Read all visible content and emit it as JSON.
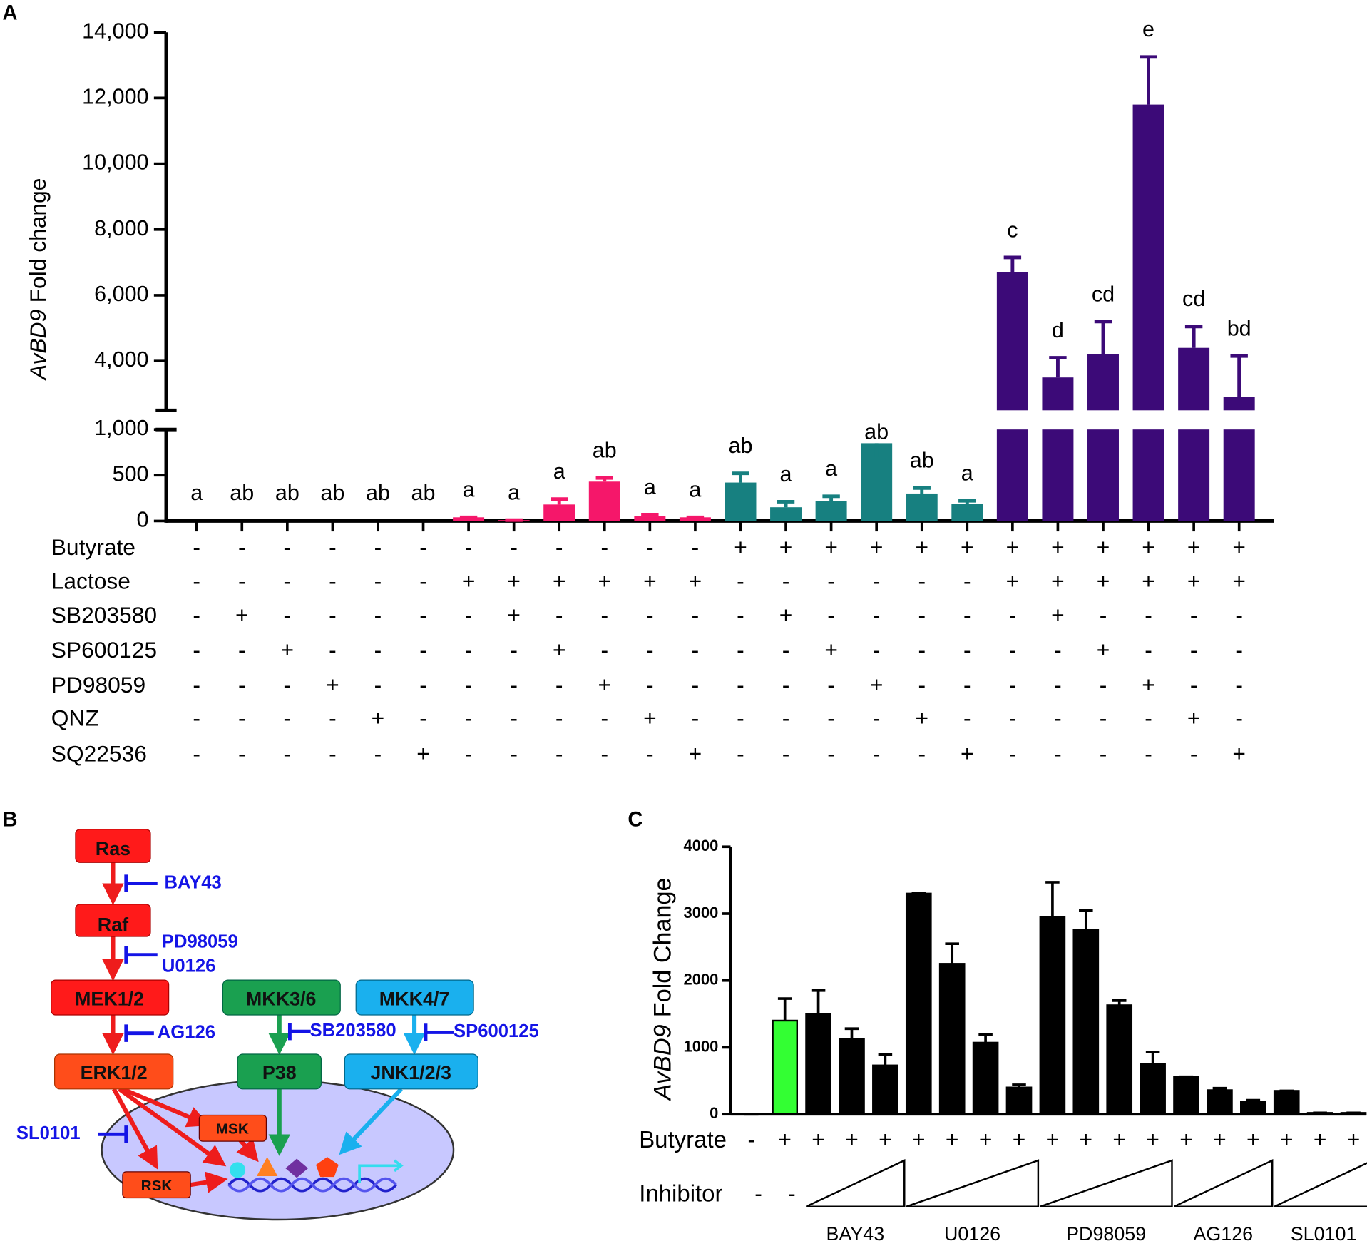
{
  "chart_data": [
    {
      "type": "bar",
      "panel": "A",
      "ylabel": {
        "italic": "AvBD9",
        "rest": "Fold change"
      },
      "ylim": [
        0,
        14000
      ],
      "ybreak": [
        1000,
        2500
      ],
      "yticks": [
        0,
        500,
        {
          "value": 1000,
          "label": "1,000"
        },
        {
          "value": 4000,
          "label": "4,000"
        },
        {
          "value": 6000,
          "label": "6,000"
        },
        {
          "value": 8000,
          "label": "8,000"
        },
        {
          "value": 10000,
          "label": "10,000"
        },
        {
          "value": 12000,
          "label": "12,000"
        },
        {
          "value": 14000,
          "label": "14,000"
        }
      ],
      "values": [
        5,
        5,
        5,
        5,
        5,
        5,
        40,
        10,
        180,
        430,
        50,
        40,
        420,
        150,
        220,
        850,
        300,
        190,
        6700,
        3500,
        4200,
        11800,
        4400,
        2900
      ],
      "errors": [
        0,
        0,
        0,
        0,
        0,
        0,
        0,
        0,
        60,
        40,
        20,
        0,
        100,
        60,
        50,
        160,
        60,
        30,
        450,
        600,
        1000,
        1450,
        650,
        1250
      ],
      "annotations": [
        "a",
        "ab",
        "ab",
        "ab",
        "ab",
        "ab",
        "a",
        "a",
        "a",
        "ab",
        "a",
        "a",
        "ab",
        "a",
        "a",
        "ab",
        "ab",
        "a",
        "c",
        "d",
        "cd",
        "e",
        "cd",
        "bd"
      ],
      "colors": [
        "#000000",
        "#000000",
        "#000000",
        "#000000",
        "#000000",
        "#000000",
        "#f5176a",
        "#f5176a",
        "#f5176a",
        "#f5176a",
        "#f5176a",
        "#f5176a",
        "#178080",
        "#178080",
        "#178080",
        "#178080",
        "#178080",
        "#178080",
        "#3c0a78",
        "#3c0a78",
        "#3c0a78",
        "#3c0a78",
        "#3c0a78",
        "#3c0a78"
      ],
      "treatments": [
        {
          "name": "Butyrate",
          "signs": [
            "-",
            "-",
            "-",
            "-",
            "-",
            "-",
            "-",
            "-",
            "-",
            "-",
            "-",
            "-",
            "+",
            "+",
            "+",
            "+",
            "+",
            "+",
            "+",
            "+",
            "+",
            "+",
            "+",
            "+"
          ]
        },
        {
          "name": "Lactose",
          "signs": [
            "-",
            "-",
            "-",
            "-",
            "-",
            "-",
            "+",
            "+",
            "+",
            "+",
            "+",
            "+",
            "-",
            "-",
            "-",
            "-",
            "-",
            "-",
            "+",
            "+",
            "+",
            "+",
            "+",
            "+"
          ]
        },
        {
          "name": "SB203580",
          "signs": [
            "-",
            "+",
            "-",
            "-",
            "-",
            "-",
            "-",
            "+",
            "-",
            "-",
            "-",
            "-",
            "-",
            "+",
            "-",
            "-",
            "-",
            "-",
            "-",
            "+",
            "-",
            "-",
            "-",
            "-"
          ]
        },
        {
          "name": "SP600125",
          "signs": [
            "-",
            "-",
            "+",
            "-",
            "-",
            "-",
            "-",
            "-",
            "+",
            "-",
            "-",
            "-",
            "-",
            "-",
            "+",
            "-",
            "-",
            "-",
            "-",
            "-",
            "+",
            "-",
            "-",
            "-"
          ]
        },
        {
          "name": "PD98059",
          "signs": [
            "-",
            "-",
            "-",
            "+",
            "-",
            "-",
            "-",
            "-",
            "-",
            "+",
            "-",
            "-",
            "-",
            "-",
            "-",
            "+",
            "-",
            "-",
            "-",
            "-",
            "-",
            "+",
            "-",
            "-"
          ]
        },
        {
          "name": "QNZ",
          "signs": [
            "-",
            "-",
            "-",
            "-",
            "+",
            "-",
            "-",
            "-",
            "-",
            "-",
            "+",
            "-",
            "-",
            "-",
            "-",
            "-",
            "+",
            "-",
            "-",
            "-",
            "-",
            "-",
            "+",
            "-"
          ]
        },
        {
          "name": "SQ22536",
          "signs": [
            "-",
            "-",
            "-",
            "-",
            "-",
            "+",
            "-",
            "-",
            "-",
            "-",
            "-",
            "+",
            "-",
            "-",
            "-",
            "-",
            "-",
            "+",
            "-",
            "-",
            "-",
            "-",
            "-",
            "+"
          ]
        }
      ]
    },
    {
      "type": "bar",
      "panel": "C",
      "ylabel": {
        "italic": "AvBD9",
        "rest": "Fold Change"
      },
      "ylim": [
        0,
        4000
      ],
      "yticks": [
        0,
        1000,
        2000,
        3000,
        4000
      ],
      "values": [
        0,
        1400,
        1500,
        1130,
        730,
        3300,
        2250,
        1070,
        400,
        2950,
        2760,
        1630,
        750,
        560,
        360,
        190,
        350,
        20,
        20
      ],
      "errors": [
        0,
        330,
        350,
        150,
        160,
        0,
        300,
        120,
        40,
        520,
        290,
        70,
        180,
        0,
        30,
        20,
        0,
        0,
        0
      ],
      "colors": [
        "#000000",
        "#33ff33",
        "#000000",
        "#000000",
        "#000000",
        "#000000",
        "#000000",
        "#000000",
        "#000000",
        "#000000",
        "#000000",
        "#000000",
        "#000000",
        "#000000",
        "#000000",
        "#000000",
        "#000000",
        "#000000",
        "#000000"
      ],
      "butyrate": {
        "name": "Butyrate",
        "signs": [
          "-",
          "+",
          "+",
          "+",
          "+",
          "+",
          "+",
          "+",
          "+",
          "+",
          "+",
          "+",
          "+",
          "+",
          "+",
          "+",
          "+",
          "+",
          "+"
        ]
      },
      "inhibitor": {
        "name": "Inhibitor",
        "signs": [
          "-",
          "-"
        ],
        "groups": [
          {
            "label": "BAY43",
            "size": 3
          },
          {
            "label": "U0126",
            "size": 4
          },
          {
            "label": "PD98059",
            "size": 4
          },
          {
            "label": "AG126",
            "size": 3
          },
          {
            "label": "SL0101",
            "size": 3
          }
        ]
      }
    }
  ],
  "diagram": {
    "panel": "B",
    "nodes": [
      "Ras",
      "Raf",
      "MEK1/2",
      "ERK1/2",
      "MKK3/6",
      "P38",
      "MKK4/7",
      "JNK1/2/3",
      "MSK",
      "RSK"
    ],
    "inhibitors": [
      "BAY43",
      "PD98059",
      "U0126",
      "AG126",
      "SB203580",
      "SP600125",
      "SL0101"
    ]
  }
}
